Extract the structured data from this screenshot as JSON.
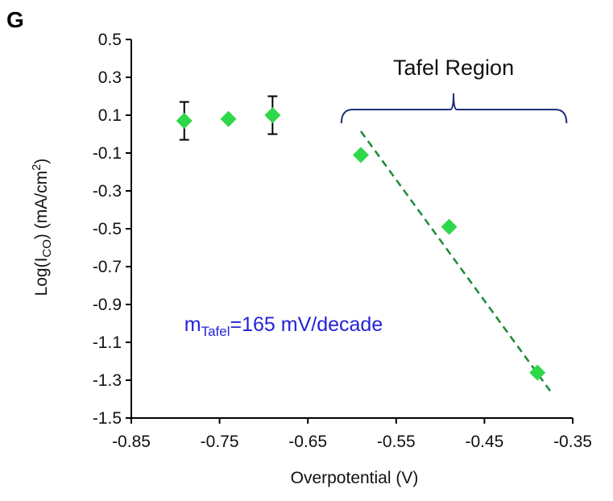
{
  "panel_label": "G",
  "colors": {
    "marker": "#2ed84a",
    "trendline": "#1a8a36",
    "annotation_text": "#2323d6",
    "bracket": "#1f2f7a",
    "axis": "#000000"
  },
  "chart_data": {
    "type": "scatter",
    "xlabel": "Overpotential (V)",
    "ylabel": {
      "prefix": "Log(I",
      "subscript": "CO",
      "middle": ") (mA/cm",
      "superscript": "2",
      "suffix": ")"
    },
    "xlim": [
      -0.85,
      -0.35
    ],
    "ylim": [
      -1.5,
      0.5
    ],
    "x_ticks": [
      -0.85,
      -0.75,
      -0.65,
      -0.55,
      -0.45,
      -0.35
    ],
    "x_tick_labels": [
      "-0.85",
      "-0.75",
      "-0.65",
      "-0.55",
      "-0.45",
      "-0.35"
    ],
    "y_ticks": [
      0.5,
      0.3,
      0.1,
      -0.1,
      -0.3,
      -0.5,
      -0.7,
      -0.9,
      -1.1,
      -1.3,
      -1.5
    ],
    "y_tick_labels": [
      "0.5",
      "0.3",
      "0.1",
      "-0.1",
      "-0.3",
      "-0.5",
      "-0.7",
      "-0.9",
      "-1.1",
      "-1.3",
      "-1.5"
    ],
    "grid": false,
    "points": [
      {
        "x": -0.79,
        "y": 0.07,
        "err": 0.1
      },
      {
        "x": -0.74,
        "y": 0.08,
        "err": null
      },
      {
        "x": -0.69,
        "y": 0.1,
        "err": 0.1
      },
      {
        "x": -0.59,
        "y": -0.11,
        "err": null
      },
      {
        "x": -0.49,
        "y": -0.49,
        "err": null
      },
      {
        "x": -0.39,
        "y": -1.26,
        "err": null
      }
    ],
    "trendline": {
      "style": "dashed",
      "x": [
        -0.59,
        -0.375
      ],
      "y": [
        0.015,
        -1.36
      ]
    },
    "bracket": {
      "x_start": -0.612,
      "x_end": -0.357,
      "x_mid": -0.485,
      "y": 0.13,
      "label": "Tafel Region"
    },
    "annotation": {
      "main": "m",
      "subscript": "Tafel",
      "rest": "=165 mV/decade",
      "x": -0.79,
      "y": -1.04
    }
  }
}
